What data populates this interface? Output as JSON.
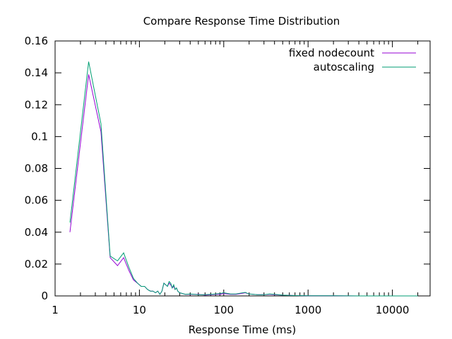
{
  "chart_data": {
    "type": "line",
    "title": "Compare Response Time Distribution",
    "xlabel": "Response Time (ms)",
    "ylabel": "",
    "xscale": "log",
    "xlim": [
      1,
      28000
    ],
    "ylim": [
      0,
      0.16
    ],
    "x_ticks": [
      1,
      10,
      100,
      1000,
      10000
    ],
    "x_tick_labels": [
      "1",
      "10",
      "100",
      "1000",
      "10000"
    ],
    "y_ticks": [
      0,
      0.02,
      0.04,
      0.06,
      0.08,
      0.1,
      0.12,
      0.14,
      0.16
    ],
    "y_tick_labels": [
      "0",
      "0.02",
      "0.04",
      "0.06",
      "0.08",
      "0.1",
      "0.12",
      "0.14",
      "0.16"
    ],
    "grid": false,
    "legend_position": "top-right",
    "series": [
      {
        "name": "fixed nodecount",
        "color": "#9400d3",
        "points": [
          [
            1.5,
            0.04
          ],
          [
            2.5,
            0.139
          ],
          [
            3.5,
            0.103
          ],
          [
            4.5,
            0.024
          ],
          [
            5.5,
            0.019
          ],
          [
            6.5,
            0.024
          ],
          [
            7.5,
            0.016
          ],
          [
            8.5,
            0.01
          ],
          [
            9.5,
            0.008
          ],
          [
            10.5,
            0.006
          ],
          [
            11.5,
            0.006
          ],
          [
            12.5,
            0.004
          ],
          [
            13.5,
            0.003
          ],
          [
            14.5,
            0.003
          ],
          [
            15.5,
            0.002
          ],
          [
            16.5,
            0.003
          ],
          [
            17.5,
            0.001
          ],
          [
            18.5,
            0.003
          ],
          [
            19.5,
            0.008
          ],
          [
            20.5,
            0.007
          ],
          [
            21.5,
            0.006
          ],
          [
            22.5,
            0.008
          ],
          [
            23.5,
            0.007
          ],
          [
            24.5,
            0.005
          ],
          [
            25.5,
            0.006
          ],
          [
            26.5,
            0.004
          ],
          [
            27.5,
            0.005
          ],
          [
            28.5,
            0.003
          ],
          [
            30,
            0.002
          ],
          [
            35,
            0.001
          ],
          [
            40,
            0.001
          ],
          [
            50,
            0.001
          ],
          [
            60,
            0.0005
          ],
          [
            70,
            0.0008
          ],
          [
            80,
            0.001
          ],
          [
            90,
            0.001
          ],
          [
            100,
            0.0015
          ],
          [
            120,
            0.001
          ],
          [
            140,
            0.001
          ],
          [
            160,
            0.0015
          ],
          [
            180,
            0.002
          ],
          [
            200,
            0.0012
          ],
          [
            250,
            0.0008
          ],
          [
            300,
            0.0008
          ],
          [
            350,
            0.001
          ],
          [
            400,
            0.0008
          ],
          [
            500,
            0.0005
          ],
          [
            700,
            0.0002
          ],
          [
            1000,
            0.0001
          ],
          [
            2000,
            0.0001
          ],
          [
            5000,
            0
          ],
          [
            10000,
            0
          ],
          [
            20000,
            0
          ]
        ]
      },
      {
        "name": "autoscaling",
        "color": "#009e73",
        "points": [
          [
            1.5,
            0.046
          ],
          [
            2.5,
            0.147
          ],
          [
            3.5,
            0.108
          ],
          [
            4.5,
            0.025
          ],
          [
            5.5,
            0.022
          ],
          [
            6.5,
            0.027
          ],
          [
            7.5,
            0.018
          ],
          [
            8.5,
            0.011
          ],
          [
            9.5,
            0.008
          ],
          [
            10.5,
            0.006
          ],
          [
            11.5,
            0.006
          ],
          [
            12.5,
            0.004
          ],
          [
            13.5,
            0.003
          ],
          [
            14.5,
            0.003
          ],
          [
            15.5,
            0.002
          ],
          [
            16.5,
            0.003
          ],
          [
            17.5,
            0.001
          ],
          [
            18.5,
            0.003
          ],
          [
            19.5,
            0.008
          ],
          [
            20.5,
            0.007
          ],
          [
            21.5,
            0.006
          ],
          [
            22.5,
            0.009
          ],
          [
            23.5,
            0.008
          ],
          [
            24.5,
            0.005
          ],
          [
            25.5,
            0.007
          ],
          [
            26.5,
            0.004
          ],
          [
            27.5,
            0.005
          ],
          [
            28.5,
            0.003
          ],
          [
            30,
            0.002
          ],
          [
            35,
            0.001
          ],
          [
            40,
            0.0012
          ],
          [
            50,
            0.0008
          ],
          [
            60,
            0.0008
          ],
          [
            70,
            0.001
          ],
          [
            80,
            0.0012
          ],
          [
            90,
            0.0015
          ],
          [
            100,
            0.002
          ],
          [
            120,
            0.0012
          ],
          [
            140,
            0.0012
          ],
          [
            160,
            0.0018
          ],
          [
            180,
            0.0022
          ],
          [
            200,
            0.0012
          ],
          [
            250,
            0.0008
          ],
          [
            300,
            0.0008
          ],
          [
            350,
            0.0012
          ],
          [
            400,
            0.001
          ],
          [
            500,
            0.0005
          ],
          [
            700,
            0.0002
          ],
          [
            1000,
            0.0001
          ],
          [
            2000,
            0.0001
          ],
          [
            5000,
            0
          ],
          [
            10000,
            0
          ],
          [
            20000,
            0
          ]
        ]
      }
    ]
  }
}
